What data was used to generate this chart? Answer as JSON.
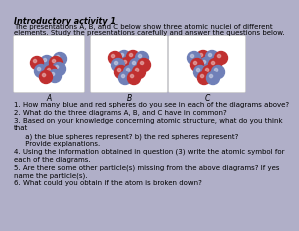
{
  "title": "Introductory activity 1",
  "intro_text1": "The presentations A, B, and C below show three atomic nuclei of different",
  "intro_text2": "elements. Study the presentations carefully and answer the questions below.",
  "labels": [
    "A",
    "B",
    "C"
  ],
  "questions": [
    "1. How many blue and red spheres do you see in each of the diagrams above?",
    "2. What do the three diagrams A, B, and C have in common?",
    "3. Based on your knowledge concerning atomic structure, what do you think",
    "that",
    "     a) the blue spheres represent? b) the red spheres represent?",
    "     Provide explanations.",
    "4. Using the information obtained in question (3) write the atomic symbol for",
    "each of the diagrams.",
    "5. Are there some other particle(s) missing from the above diagrams? If yes",
    "name the particle(s).",
    "6. What could you obtain if the atom is broken down?"
  ],
  "background_color": "#b0afc8",
  "box_color": "#ffffff",
  "title_fontsize": 5.8,
  "text_fontsize": 5.0,
  "question_fontsize": 5.0,
  "label_fontsize": 5.5,
  "blue_color": "#7080b8",
  "red_color": "#c03030",
  "highlight_color": "#ffffff"
}
